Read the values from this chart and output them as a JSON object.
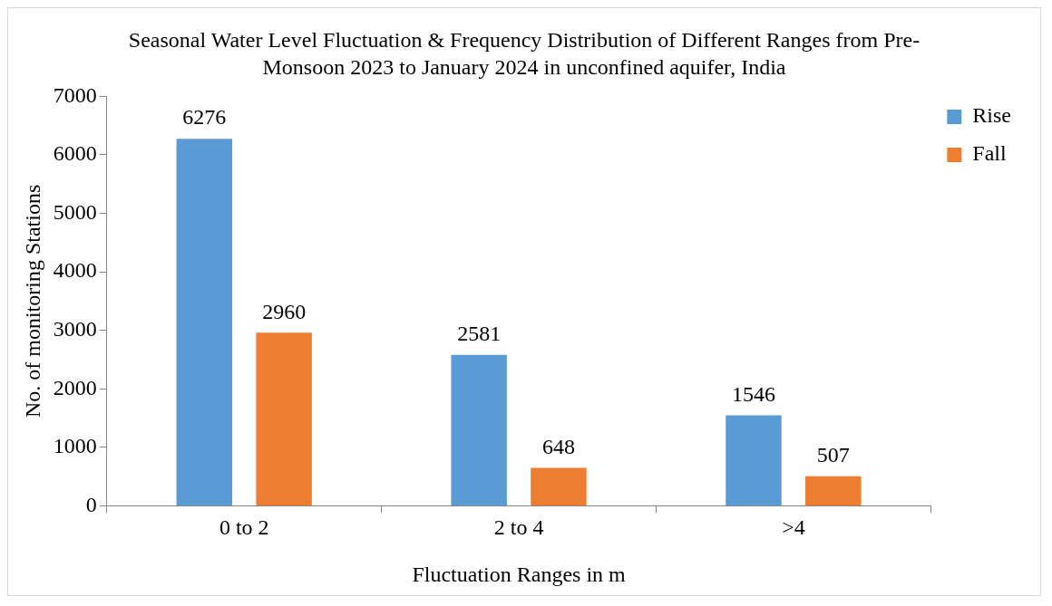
{
  "chart_data": {
    "type": "bar",
    "title": "Seasonal Water Level Fluctuation & Frequency Distribution of Different Ranges from Pre-Monsoon 2023 to January 2024 in unconfined aquifer, India",
    "xlabel": "Fluctuation Ranges in m",
    "ylabel": "No. of monitoring Stations",
    "categories": [
      "0 to 2",
      "2 to 4",
      ">4"
    ],
    "series": [
      {
        "name": "Rise",
        "color": "#5b9bd5",
        "values": [
          6276,
          2581,
          1546
        ]
      },
      {
        "name": "Fall",
        "color": "#ed7d31",
        "values": [
          2960,
          648,
          507
        ]
      }
    ],
    "ylim": [
      0,
      7000
    ],
    "yticks": [
      0,
      1000,
      2000,
      3000,
      4000,
      5000,
      6000,
      7000
    ],
    "grid": false,
    "legend": "top right",
    "data_labels": true
  }
}
